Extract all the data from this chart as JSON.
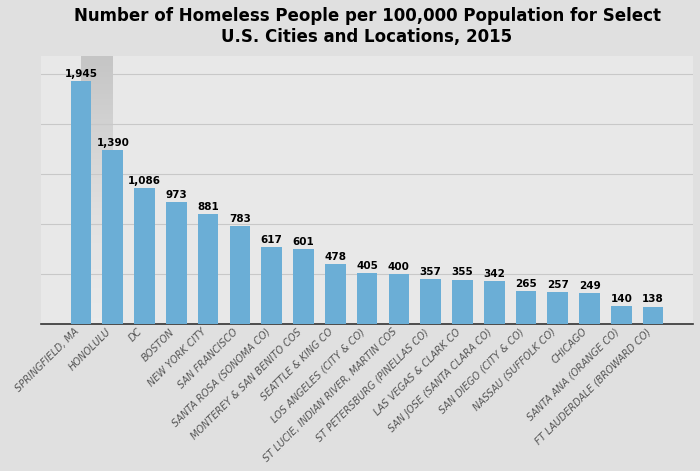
{
  "title": "Number of Homeless People per 100,000 Population for Select\nU.S. Cities and Locations, 2015",
  "categories": [
    "SPRINGFIELD, MA",
    "HONOLULU",
    "DC",
    "BOSTON",
    "NEW YORK CITY",
    "SAN FRANCISCO",
    "SANTA ROSA (SONOMA CO)",
    "MONTEREY & SAN BENITO COS",
    "SEATTLE & KING CO",
    "LOS ANGELES (CITY & CO)",
    "ST LUCIE, INDIAN RIVER, MARTIN COS",
    "ST PETERSBURG (PINELLAS CO)",
    "LAS VEGAS & CLARK CO",
    "SAN JOSE (SANTA CLARA CO)",
    "SAN DIEGO (CITY & CO)",
    "NASSAU (SUFFOLK CO)",
    "CHICAGO",
    "SANTA ANA (ORANGE CO)",
    "FT LAUDERDALE (BROWARD CO)"
  ],
  "values": [
    1945,
    1390,
    1086,
    973,
    881,
    783,
    617,
    601,
    478,
    405,
    400,
    357,
    355,
    342,
    265,
    257,
    249,
    140,
    138
  ],
  "bar_color": "#6baed6",
  "label_fontsize": 7.5,
  "title_fontsize": 12,
  "tick_fontsize": 7,
  "ylim": [
    0,
    2150
  ],
  "background_color_top": "#f0f0f0",
  "background_color_bottom": "#d8d8d8",
  "grid_color": "#c8c8c8",
  "bar_width": 0.65
}
